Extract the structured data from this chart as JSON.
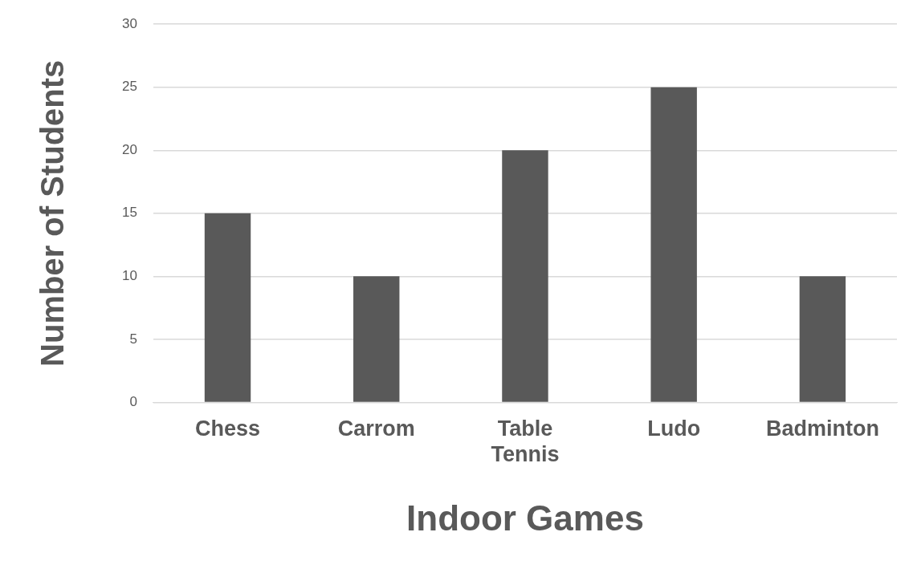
{
  "chart_data": {
    "type": "bar",
    "xlabel": "Indoor Games",
    "ylabel": "Number of Students",
    "categories": [
      "Chess",
      "Carrom",
      "Table Tennis",
      "Ludo",
      "Badminton"
    ],
    "values": [
      15,
      10,
      20,
      25,
      10
    ],
    "color": "#595959",
    "ylim": [
      0,
      30
    ],
    "yticks": [
      0,
      5,
      10,
      15,
      20,
      25,
      30
    ],
    "grid": "y",
    "legend": false
  }
}
